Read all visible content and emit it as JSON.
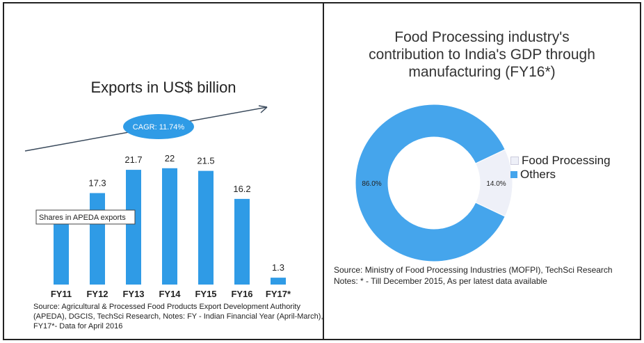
{
  "left": {
    "title": "Exports in US$ billion",
    "cagr_label": "CAGR: 11.74%",
    "annotation": "Shares in APEDA exports",
    "source_lines": [
      "Source: Agricultural & Processed Food Products Export Development Authority",
      "(APEDA), DGCIS, TechSci Research, Notes: FY - Indian Financial Year (April-March),",
      "FY17*- Data for April 2016"
    ]
  },
  "right": {
    "title_lines": [
      "Food Processing industry's",
      "contribution to India's GDP through",
      "manufacturing (FY16*)"
    ],
    "source_lines": [
      "Source: Ministry of Food Processing Industries (MOFPI), TechSci Research",
      "Notes: * - Till December 2015, As per latest data available"
    ]
  },
  "colors": {
    "bar": "#2f9be6",
    "oval": "#2f9be6",
    "others": "#45a5ec",
    "food_processing": "#eef0f8"
  },
  "chart_data": [
    {
      "type": "bar",
      "title": "Exports in US$ billion",
      "categories": [
        "FY11",
        "FY12",
        "FY13",
        "FY14",
        "FY15",
        "FY16",
        "FY17*"
      ],
      "values": [
        12.5,
        17.3,
        21.7,
        22,
        21.5,
        16.2,
        1.3
      ],
      "data_labels": [
        "",
        "17.3",
        "21.7",
        "22",
        "21.5",
        "16.2",
        "1.3"
      ],
      "ylim": [
        0,
        25
      ],
      "annotations": [
        "CAGR: 11.74%",
        "Shares in APEDA exports"
      ]
    },
    {
      "type": "pie",
      "title": "Food Processing industry's contribution to India's GDP through manufacturing (FY16*)",
      "slices": [
        {
          "name": "Food Processing",
          "value": 14.0,
          "label": "14.0%"
        },
        {
          "name": "Others",
          "value": 86.0,
          "label": "86.0%"
        }
      ],
      "legend": "right"
    }
  ]
}
